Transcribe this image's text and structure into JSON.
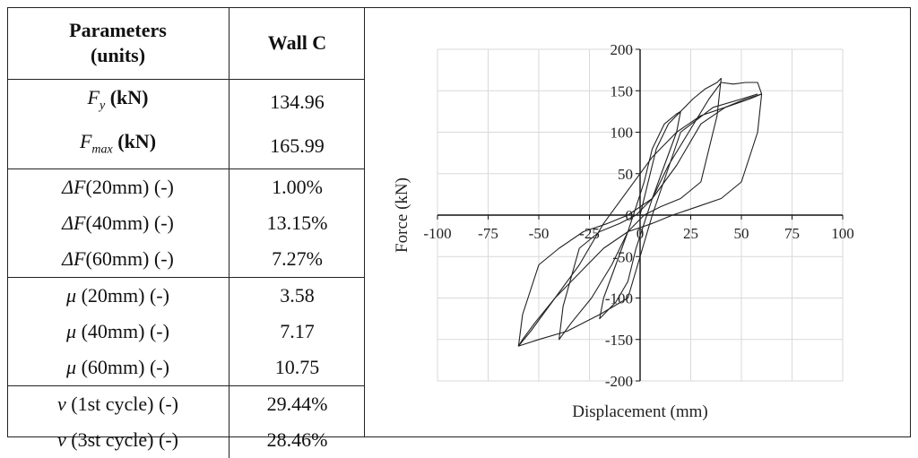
{
  "table": {
    "header": {
      "col1_line1": "Parameters",
      "col1_line2": "(units)",
      "col2": "Wall C"
    },
    "rows": [
      {
        "sym": "F",
        "sub": "y",
        "unit": " (kN)",
        "value": "134.96"
      },
      {
        "sym": "F",
        "sub": "max",
        "unit": " (kN)",
        "value": "165.99"
      },
      {
        "sym": "ΔF",
        "sub": "",
        "unit": "(20mm) (-)",
        "value": "1.00%"
      },
      {
        "sym": "ΔF",
        "sub": "",
        "unit": "(40mm) (-)",
        "value": "13.15%"
      },
      {
        "sym": "ΔF",
        "sub": "",
        "unit": "(60mm) (-)",
        "value": "7.27%"
      },
      {
        "sym": "μ",
        "sub": "",
        "unit": " (20mm) (-)",
        "value": "3.58"
      },
      {
        "sym": "μ",
        "sub": "",
        "unit": " (40mm) (-)",
        "value": "7.17"
      },
      {
        "sym": "μ",
        "sub": "",
        "unit": " (60mm) (-)",
        "value": "10.75"
      },
      {
        "sym": "ν",
        "sub": "",
        "unit": " (1st cycle) (-)",
        "value": "29.44%"
      },
      {
        "sym": "ν",
        "sub": "",
        "unit": " (3st cycle) (-)",
        "value": "28.46%"
      }
    ]
  },
  "chart_data": {
    "type": "line",
    "title": "",
    "xlabel": "Displacement (mm)",
    "ylabel": "Force (kN)",
    "xlim": [
      -100,
      100
    ],
    "ylim": [
      -200,
      200
    ],
    "xticks": [
      -100,
      -75,
      -50,
      -25,
      0,
      25,
      50,
      75,
      100
    ],
    "yticks": [
      200,
      150,
      100,
      50,
      0,
      -50,
      -100,
      -150,
      -200
    ],
    "grid": true,
    "series": [
      {
        "x": [
          0,
          4,
          8,
          14,
          20,
          18,
          12,
          6,
          2,
          -2,
          -6,
          -12,
          -18,
          -20,
          -18,
          -12,
          -6,
          -2,
          2,
          6,
          12,
          18,
          20
        ],
        "y": [
          0,
          40,
          80,
          110,
          125,
          100,
          60,
          20,
          -10,
          -40,
          -80,
          -105,
          -120,
          -125,
          -100,
          -60,
          -20,
          10,
          40,
          80,
          110,
          122,
          125
        ]
      },
      {
        "x": [
          20,
          26,
          32,
          38,
          40,
          38,
          30,
          20,
          10,
          2,
          -6,
          -14,
          -24,
          -34,
          -40,
          -38,
          -30,
          -20,
          -10,
          -2,
          6,
          14,
          24,
          34,
          40
        ],
        "y": [
          125,
          140,
          152,
          160,
          165,
          120,
          40,
          20,
          10,
          0,
          -20,
          -60,
          -100,
          -130,
          -150,
          -110,
          -40,
          -20,
          -10,
          0,
          20,
          60,
          100,
          140,
          160
        ]
      },
      {
        "x": [
          40,
          46,
          52,
          58,
          60,
          58,
          50,
          40,
          28,
          16,
          6,
          -6,
          -18,
          -30,
          -42,
          -54,
          -60,
          -58,
          -50,
          -40,
          -28,
          -16,
          -6,
          6,
          18,
          30,
          42,
          54,
          60
        ],
        "y": [
          160,
          158,
          160,
          160,
          146,
          100,
          40,
          20,
          10,
          0,
          -10,
          -20,
          -40,
          -70,
          -100,
          -140,
          -158,
          -120,
          -60,
          -40,
          -20,
          -10,
          0,
          20,
          60,
          110,
          130,
          140,
          146
        ]
      },
      {
        "x": [
          60,
          52,
          42,
          30,
          18,
          6,
          -6,
          -18,
          -30,
          -42,
          -52,
          -58,
          -60,
          -50,
          -36,
          -20,
          -6,
          6,
          20,
          36,
          50,
          58
        ],
        "y": [
          146,
          140,
          130,
          120,
          100,
          70,
          30,
          -10,
          -60,
          -100,
          -130,
          -150,
          -158,
          -150,
          -140,
          -120,
          -100,
          0,
          100,
          130,
          140,
          146
        ]
      }
    ]
  }
}
